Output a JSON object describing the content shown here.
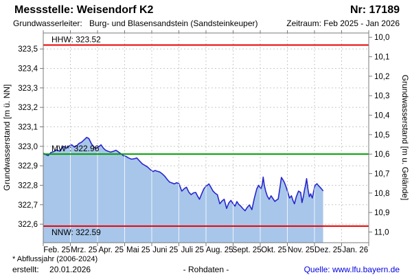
{
  "header": {
    "station_label": "Messstelle: Weisendorf K2",
    "number_label": "Nr: 17189",
    "aquifer_label": "Grundwasserleiter:",
    "aquifer_value": "Burg- und Blasensandstein (Sandsteinkeuper)",
    "period_label": "Zeitraum: Feb 2025 - Jan 2026"
  },
  "footer": {
    "footnote": "* Abflussjahr (2006-2024)",
    "created_label": "erstellt:",
    "created_date": "20.01.2026",
    "data_type": "- Rohdaten -",
    "source_text": "Quelle: www.lfu.bayern.de"
  },
  "chart_data": {
    "type": "area",
    "title": "",
    "grid": true,
    "colors": {
      "curve": "#2626cc",
      "fill": "#a8c6ea",
      "reference_red": "#e80000",
      "reference_green": "#00a000",
      "gridline": "#c8c8c8",
      "border": "#787878",
      "month_line_on_fill": "#ffffff"
    },
    "left_axis": {
      "label": "Grundwasserstand [m ü. NN]",
      "ticks": [
        "323,5",
        "323,4",
        "323,3",
        "323,2",
        "323,1",
        "323,0",
        "322,9",
        "322,8",
        "322,7",
        "322,6"
      ],
      "tick_values": [
        323.5,
        323.4,
        323.3,
        323.2,
        323.1,
        323.0,
        322.9,
        322.8,
        322.7,
        322.6
      ],
      "range": [
        322.505,
        323.582
      ]
    },
    "right_axis": {
      "label": "Grundwasserstand [m u. Gelände]",
      "ticks": [
        "10,0",
        "10,1",
        "10,2",
        "10,3",
        "10,4",
        "10,5",
        "10,6",
        "10,7",
        "10,8",
        "10,9",
        "11,0"
      ],
      "tick_values": [
        10.0,
        10.1,
        10.2,
        10.3,
        10.4,
        10.5,
        10.6,
        10.7,
        10.8,
        10.9,
        11.0
      ],
      "ground_elevation": 333.56
    },
    "x_axis": {
      "months": [
        "Feb. 25",
        "Mrz. 25",
        "Apr. 25",
        "Mai 25",
        "Juni 25",
        "Juli 25",
        "Aug. 25",
        "Sept. 25",
        "Okt. 25",
        "Nov. 25",
        "Dez. 25",
        "Jan. 26"
      ],
      "range": [
        0,
        12
      ]
    },
    "reference_lines": [
      {
        "name": "HHW",
        "label": "HHW: 323.52",
        "value": 323.52,
        "color": "#e80000",
        "label_side": "above"
      },
      {
        "name": "MW",
        "label": "MW*: 322.96",
        "value": 322.96,
        "color": "#00a000",
        "label_side": "above"
      },
      {
        "name": "NNW",
        "label": "NNW: 322.59",
        "value": 322.59,
        "color": "#e80000",
        "label_side": "below"
      }
    ],
    "series": [
      {
        "name": "Grundwasserstand Rohdaten",
        "points": [
          [
            0.0,
            322.965
          ],
          [
            0.08,
            322.958
          ],
          [
            0.18,
            322.952
          ],
          [
            0.28,
            322.968
          ],
          [
            0.38,
            322.972
          ],
          [
            0.5,
            322.982
          ],
          [
            0.6,
            322.975
          ],
          [
            0.7,
            322.992
          ],
          [
            0.76,
            323.0
          ],
          [
            0.85,
            322.99
          ],
          [
            0.95,
            323.002
          ],
          [
            1.05,
            323.008
          ],
          [
            1.15,
            322.996
          ],
          [
            1.25,
            323.005
          ],
          [
            1.32,
            323.015
          ],
          [
            1.42,
            323.022
          ],
          [
            1.52,
            323.035
          ],
          [
            1.6,
            323.046
          ],
          [
            1.68,
            323.04
          ],
          [
            1.78,
            323.012
          ],
          [
            1.88,
            322.995
          ],
          [
            1.95,
            322.99
          ],
          [
            2.05,
            322.998
          ],
          [
            2.13,
            323.008
          ],
          [
            2.22,
            322.99
          ],
          [
            2.3,
            322.98
          ],
          [
            2.38,
            322.975
          ],
          [
            2.48,
            322.97
          ],
          [
            2.58,
            322.974
          ],
          [
            2.68,
            322.98
          ],
          [
            2.78,
            322.97
          ],
          [
            2.88,
            322.96
          ],
          [
            2.95,
            322.952
          ],
          [
            3.05,
            322.948
          ],
          [
            3.15,
            322.94
          ],
          [
            3.25,
            322.934
          ],
          [
            3.35,
            322.936
          ],
          [
            3.45,
            322.94
          ],
          [
            3.55,
            322.925
          ],
          [
            3.65,
            322.91
          ],
          [
            3.75,
            322.902
          ],
          [
            3.85,
            322.893
          ],
          [
            3.95,
            322.88
          ],
          [
            4.05,
            322.87
          ],
          [
            4.12,
            322.876
          ],
          [
            4.2,
            322.872
          ],
          [
            4.3,
            322.868
          ],
          [
            4.4,
            322.857
          ],
          [
            4.48,
            322.846
          ],
          [
            4.58,
            322.828
          ],
          [
            4.66,
            322.816
          ],
          [
            4.75,
            322.812
          ],
          [
            4.83,
            322.807
          ],
          [
            4.91,
            322.813
          ],
          [
            5.0,
            322.809
          ],
          [
            5.11,
            322.77
          ],
          [
            5.2,
            322.783
          ],
          [
            5.28,
            322.79
          ],
          [
            5.37,
            322.764
          ],
          [
            5.45,
            322.752
          ],
          [
            5.54,
            322.761
          ],
          [
            5.62,
            322.763
          ],
          [
            5.69,
            322.744
          ],
          [
            5.76,
            322.728
          ],
          [
            5.84,
            322.756
          ],
          [
            5.92,
            322.781
          ],
          [
            6.0,
            322.795
          ],
          [
            6.06,
            322.801
          ],
          [
            6.11,
            322.807
          ],
          [
            6.18,
            322.79
          ],
          [
            6.26,
            322.77
          ],
          [
            6.34,
            322.759
          ],
          [
            6.42,
            322.751
          ],
          [
            6.51,
            322.705
          ],
          [
            6.59,
            322.719
          ],
          [
            6.67,
            322.728
          ],
          [
            6.76,
            322.681
          ],
          [
            6.84,
            322.709
          ],
          [
            6.92,
            322.722
          ],
          [
            7.0,
            322.704
          ],
          [
            7.07,
            322.693
          ],
          [
            7.14,
            322.716
          ],
          [
            7.21,
            322.701
          ],
          [
            7.28,
            322.693
          ],
          [
            7.36,
            322.68
          ],
          [
            7.44,
            322.669
          ],
          [
            7.52,
            322.686
          ],
          [
            7.6,
            322.699
          ],
          [
            7.69,
            322.675
          ],
          [
            7.78,
            322.732
          ],
          [
            7.87,
            322.781
          ],
          [
            7.94,
            322.8
          ],
          [
            8.02,
            322.782
          ],
          [
            8.07,
            322.801
          ],
          [
            8.11,
            322.842
          ],
          [
            8.15,
            322.801
          ],
          [
            8.2,
            322.77
          ],
          [
            8.26,
            322.744
          ],
          [
            8.33,
            322.728
          ],
          [
            8.4,
            322.746
          ],
          [
            8.47,
            322.731
          ],
          [
            8.54,
            322.717
          ],
          [
            8.6,
            322.724
          ],
          [
            8.66,
            322.729
          ],
          [
            8.72,
            322.782
          ],
          [
            8.78,
            322.84
          ],
          [
            8.83,
            322.829
          ],
          [
            8.88,
            322.817
          ],
          [
            8.95,
            322.793
          ],
          [
            9.02,
            322.761
          ],
          [
            9.08,
            322.734
          ],
          [
            9.15,
            322.746
          ],
          [
            9.2,
            322.724
          ],
          [
            9.26,
            322.705
          ],
          [
            9.33,
            322.741
          ],
          [
            9.41,
            322.77
          ],
          [
            9.49,
            322.763
          ],
          [
            9.54,
            322.711
          ],
          [
            9.59,
            322.742
          ],
          [
            9.63,
            322.775
          ],
          [
            9.67,
            322.801
          ],
          [
            9.71,
            322.834
          ],
          [
            9.76,
            322.779
          ],
          [
            9.81,
            322.741
          ],
          [
            9.86,
            322.756
          ],
          [
            9.92,
            322.734
          ],
          [
            9.97,
            322.769
          ],
          [
            10.02,
            322.799
          ],
          [
            10.09,
            322.808
          ],
          [
            10.14,
            322.799
          ],
          [
            10.19,
            322.792
          ],
          [
            10.26,
            322.781
          ],
          [
            10.32,
            322.771
          ]
        ]
      }
    ]
  }
}
